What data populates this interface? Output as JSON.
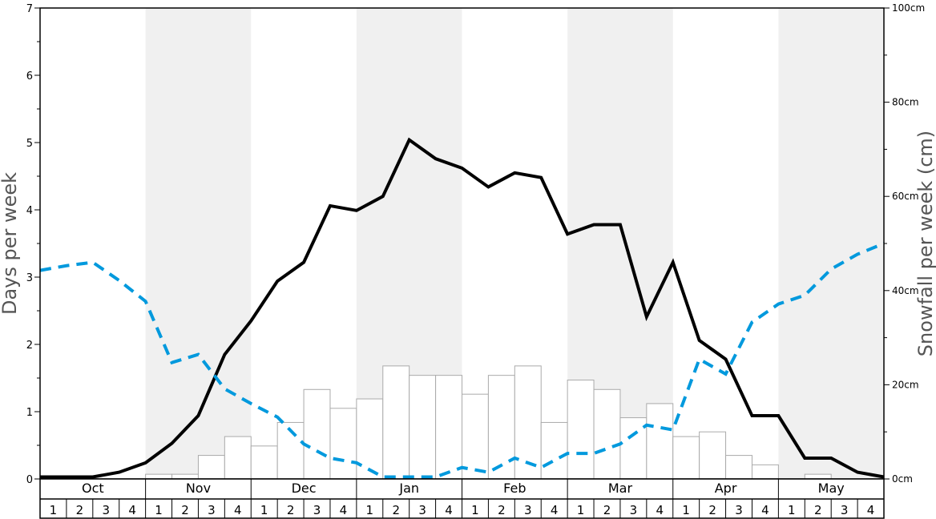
{
  "chart_data": {
    "type": "bar",
    "ylabel_left": "Days per week",
    "ylabel_right": "Snowfall per week (cm)",
    "ylim_left": [
      0,
      7
    ],
    "ylim_right": [
      0,
      100
    ],
    "left_ticks": [
      "0",
      "1",
      "2",
      "3",
      "4",
      "5",
      "6",
      "7"
    ],
    "right_ticks": [
      "0cm",
      "20cm",
      "40cm",
      "60cm",
      "80cm",
      "100cm"
    ],
    "months": [
      "Oct",
      "Nov",
      "Dec",
      "Jan",
      "Feb",
      "Mar",
      "Apr",
      "May"
    ],
    "week_labels": [
      "1",
      "2",
      "3",
      "4",
      "1",
      "2",
      "3",
      "4",
      "1",
      "2",
      "3",
      "4",
      "1",
      "2",
      "3",
      "4",
      "1",
      "2",
      "3",
      "4",
      "1",
      "2",
      "3",
      "4",
      "1",
      "2",
      "3",
      "4",
      "1",
      "2",
      "3",
      "4"
    ],
    "shaded_months": [
      "Nov",
      "Jan",
      "Mar",
      "May"
    ],
    "grid": false,
    "series": [
      {
        "kind": "bar",
        "axis": "right",
        "color": "#ffffff",
        "edge": "#aaaaaa",
        "values": [
          0,
          0,
          0,
          0,
          1,
          1,
          5,
          9,
          7,
          12,
          19,
          15,
          17,
          24,
          22,
          22,
          18,
          22,
          24,
          12,
          21,
          19,
          13,
          16,
          9,
          10,
          5,
          3,
          0,
          1,
          0,
          0
        ]
      },
      {
        "kind": "line",
        "axis": "left",
        "color": "#000000",
        "style": "solid",
        "values": [
          0.03,
          0.03,
          0.03,
          0.1,
          0.24,
          0.53,
          0.94,
          1.85,
          2.35,
          2.94,
          3.22,
          4.06,
          3.99,
          4.2,
          5.04,
          4.76,
          4.62,
          4.34,
          4.55,
          4.48,
          3.64,
          3.78,
          3.78,
          2.41,
          3.22,
          2.06,
          1.78,
          0.94,
          0.94,
          0.31,
          0.31,
          0.1,
          0.03
        ]
      },
      {
        "kind": "line",
        "axis": "left",
        "color": "#0099dd",
        "style": "dashed",
        "values": [
          3.1,
          3.17,
          3.22,
          2.95,
          2.64,
          1.73,
          1.85,
          1.34,
          1.12,
          0.92,
          0.52,
          0.31,
          0.24,
          0.03,
          0.03,
          0.03,
          0.17,
          0.1,
          0.31,
          0.17,
          0.38,
          0.38,
          0.52,
          0.8,
          0.73,
          1.78,
          1.56,
          2.33,
          2.6,
          2.73,
          3.12,
          3.34,
          3.5
        ]
      }
    ]
  }
}
